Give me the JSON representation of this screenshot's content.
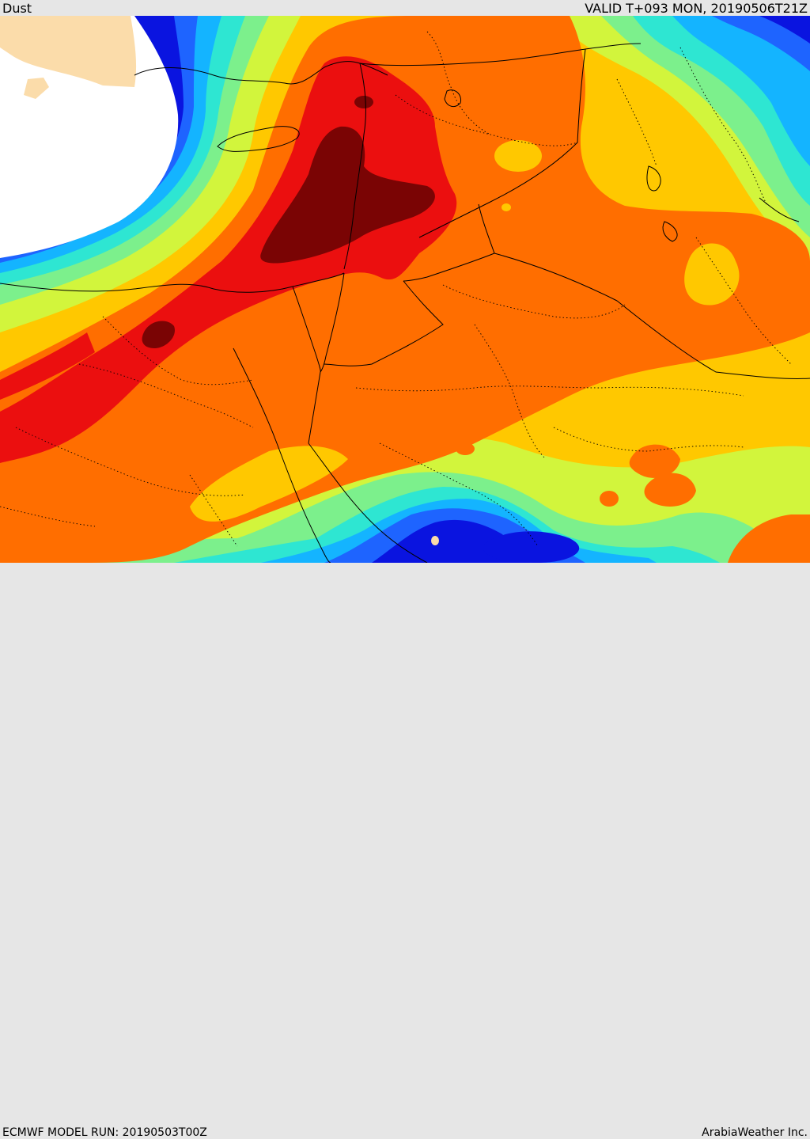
{
  "header": {
    "product_title": "Dust",
    "valid_time": "VALID T+093 MON, 20190506T21Z"
  },
  "footer": {
    "model_run": "ECMWF MODEL RUN: 20190503T00Z",
    "brand": "ArabiaWeather Inc."
  },
  "colors": {
    "sea_masked": "#ffffff",
    "land_masked": "#fbdcaa",
    "level_1": "#0a14e0",
    "level_2": "#1e64ff",
    "level_3": "#14b4ff",
    "level_4": "#2ee6d2",
    "level_5": "#7cf08c",
    "level_6": "#d2f53c",
    "level_7": "#ffc800",
    "level_8": "#ff6e00",
    "level_9": "#eb0f0f",
    "level_10": "#7a0404"
  }
}
